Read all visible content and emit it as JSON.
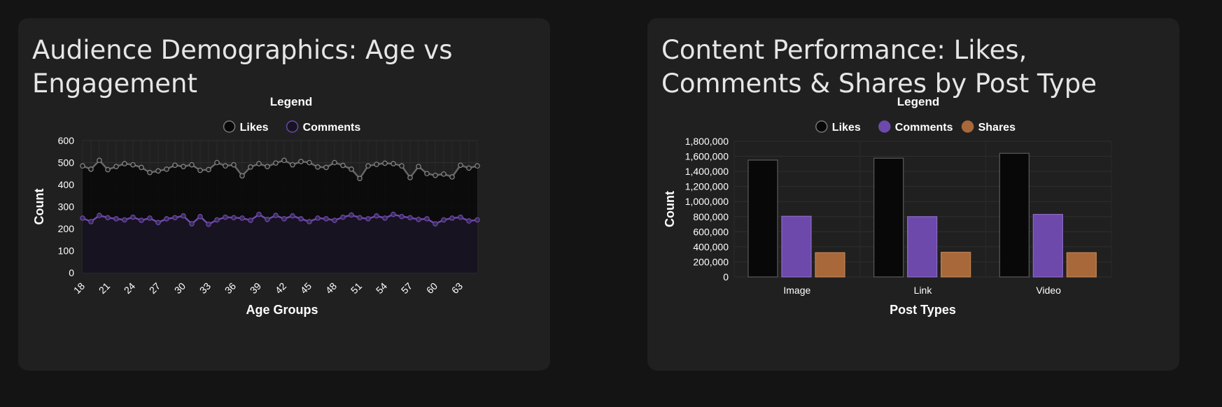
{
  "colors": {
    "page_bg": "#141414",
    "card_bg": "#202020",
    "likes": "#080808",
    "likes_line": "#666666",
    "comments": "#6c49aa",
    "comments_area": "#171321",
    "shares": "#a8683a",
    "text": "#ffffff"
  },
  "charts": {
    "age": {
      "title": "Audience Demographics: Age vs Engagement",
      "legend_title": "Legend",
      "legend": [
        "Likes",
        "Comments"
      ]
    },
    "post": {
      "title": "Content Performance: Likes, Comments & Shares by Post Type",
      "legend_title": "Legend",
      "legend": [
        "Likes",
        "Comments",
        "Shares"
      ]
    }
  },
  "chart_data": [
    {
      "type": "line",
      "title": "Audience Demographics: Age vs Engagement",
      "xlabel": "Age Groups",
      "ylabel": "Count",
      "ylim": [
        0,
        600
      ],
      "yticks": [
        0,
        100,
        200,
        300,
        400,
        500,
        600
      ],
      "x": [
        18,
        19,
        20,
        21,
        22,
        23,
        24,
        25,
        26,
        27,
        28,
        29,
        30,
        31,
        32,
        33,
        34,
        35,
        36,
        37,
        38,
        39,
        40,
        41,
        42,
        43,
        44,
        45,
        46,
        47,
        48,
        49,
        50,
        51,
        52,
        53,
        54,
        55,
        56,
        57,
        58,
        59,
        60,
        61,
        62,
        63,
        64,
        65
      ],
      "xtick_labels": [
        "18",
        "21",
        "24",
        "27",
        "30",
        "33",
        "36",
        "39",
        "42",
        "45",
        "48",
        "51",
        "54",
        "57",
        "60",
        "63"
      ],
      "fill": true,
      "series": [
        {
          "name": "Likes",
          "values": [
            485,
            470,
            510,
            468,
            482,
            495,
            490,
            478,
            455,
            462,
            470,
            488,
            482,
            490,
            465,
            468,
            500,
            485,
            490,
            440,
            480,
            495,
            482,
            498,
            510,
            490,
            505,
            500,
            480,
            478,
            500,
            487,
            470,
            428,
            485,
            492,
            497,
            495,
            485,
            432,
            482,
            450,
            442,
            448,
            435,
            488,
            475,
            485
          ]
        },
        {
          "name": "Comments",
          "values": [
            248,
            232,
            260,
            250,
            245,
            240,
            252,
            238,
            248,
            228,
            245,
            250,
            258,
            222,
            255,
            220,
            240,
            252,
            250,
            248,
            238,
            265,
            242,
            260,
            245,
            258,
            245,
            232,
            248,
            245,
            238,
            252,
            262,
            250,
            245,
            258,
            248,
            265,
            255,
            250,
            242,
            245,
            222,
            240,
            248,
            252,
            235,
            240
          ]
        }
      ]
    },
    {
      "type": "bar",
      "title": "Content Performance: Likes, Comments & Shares by Post Type",
      "xlabel": "Post Types",
      "ylabel": "Count",
      "ylim": [
        0,
        1800000
      ],
      "yticks": [
        0,
        200000,
        400000,
        600000,
        800000,
        1000000,
        1200000,
        1400000,
        1600000,
        1800000
      ],
      "ytick_labels": [
        "0",
        "200,000",
        "400,000",
        "600,000",
        "800,000",
        "1,000,000",
        "1,200,000",
        "1,400,000",
        "1,600,000",
        "1,800,000"
      ],
      "categories": [
        "Image",
        "Link",
        "Video"
      ],
      "series": [
        {
          "name": "Likes",
          "values": [
            1550000,
            1575000,
            1640000
          ]
        },
        {
          "name": "Comments",
          "values": [
            805000,
            800000,
            830000
          ]
        },
        {
          "name": "Shares",
          "values": [
            322000,
            327000,
            322000
          ]
        }
      ]
    }
  ]
}
